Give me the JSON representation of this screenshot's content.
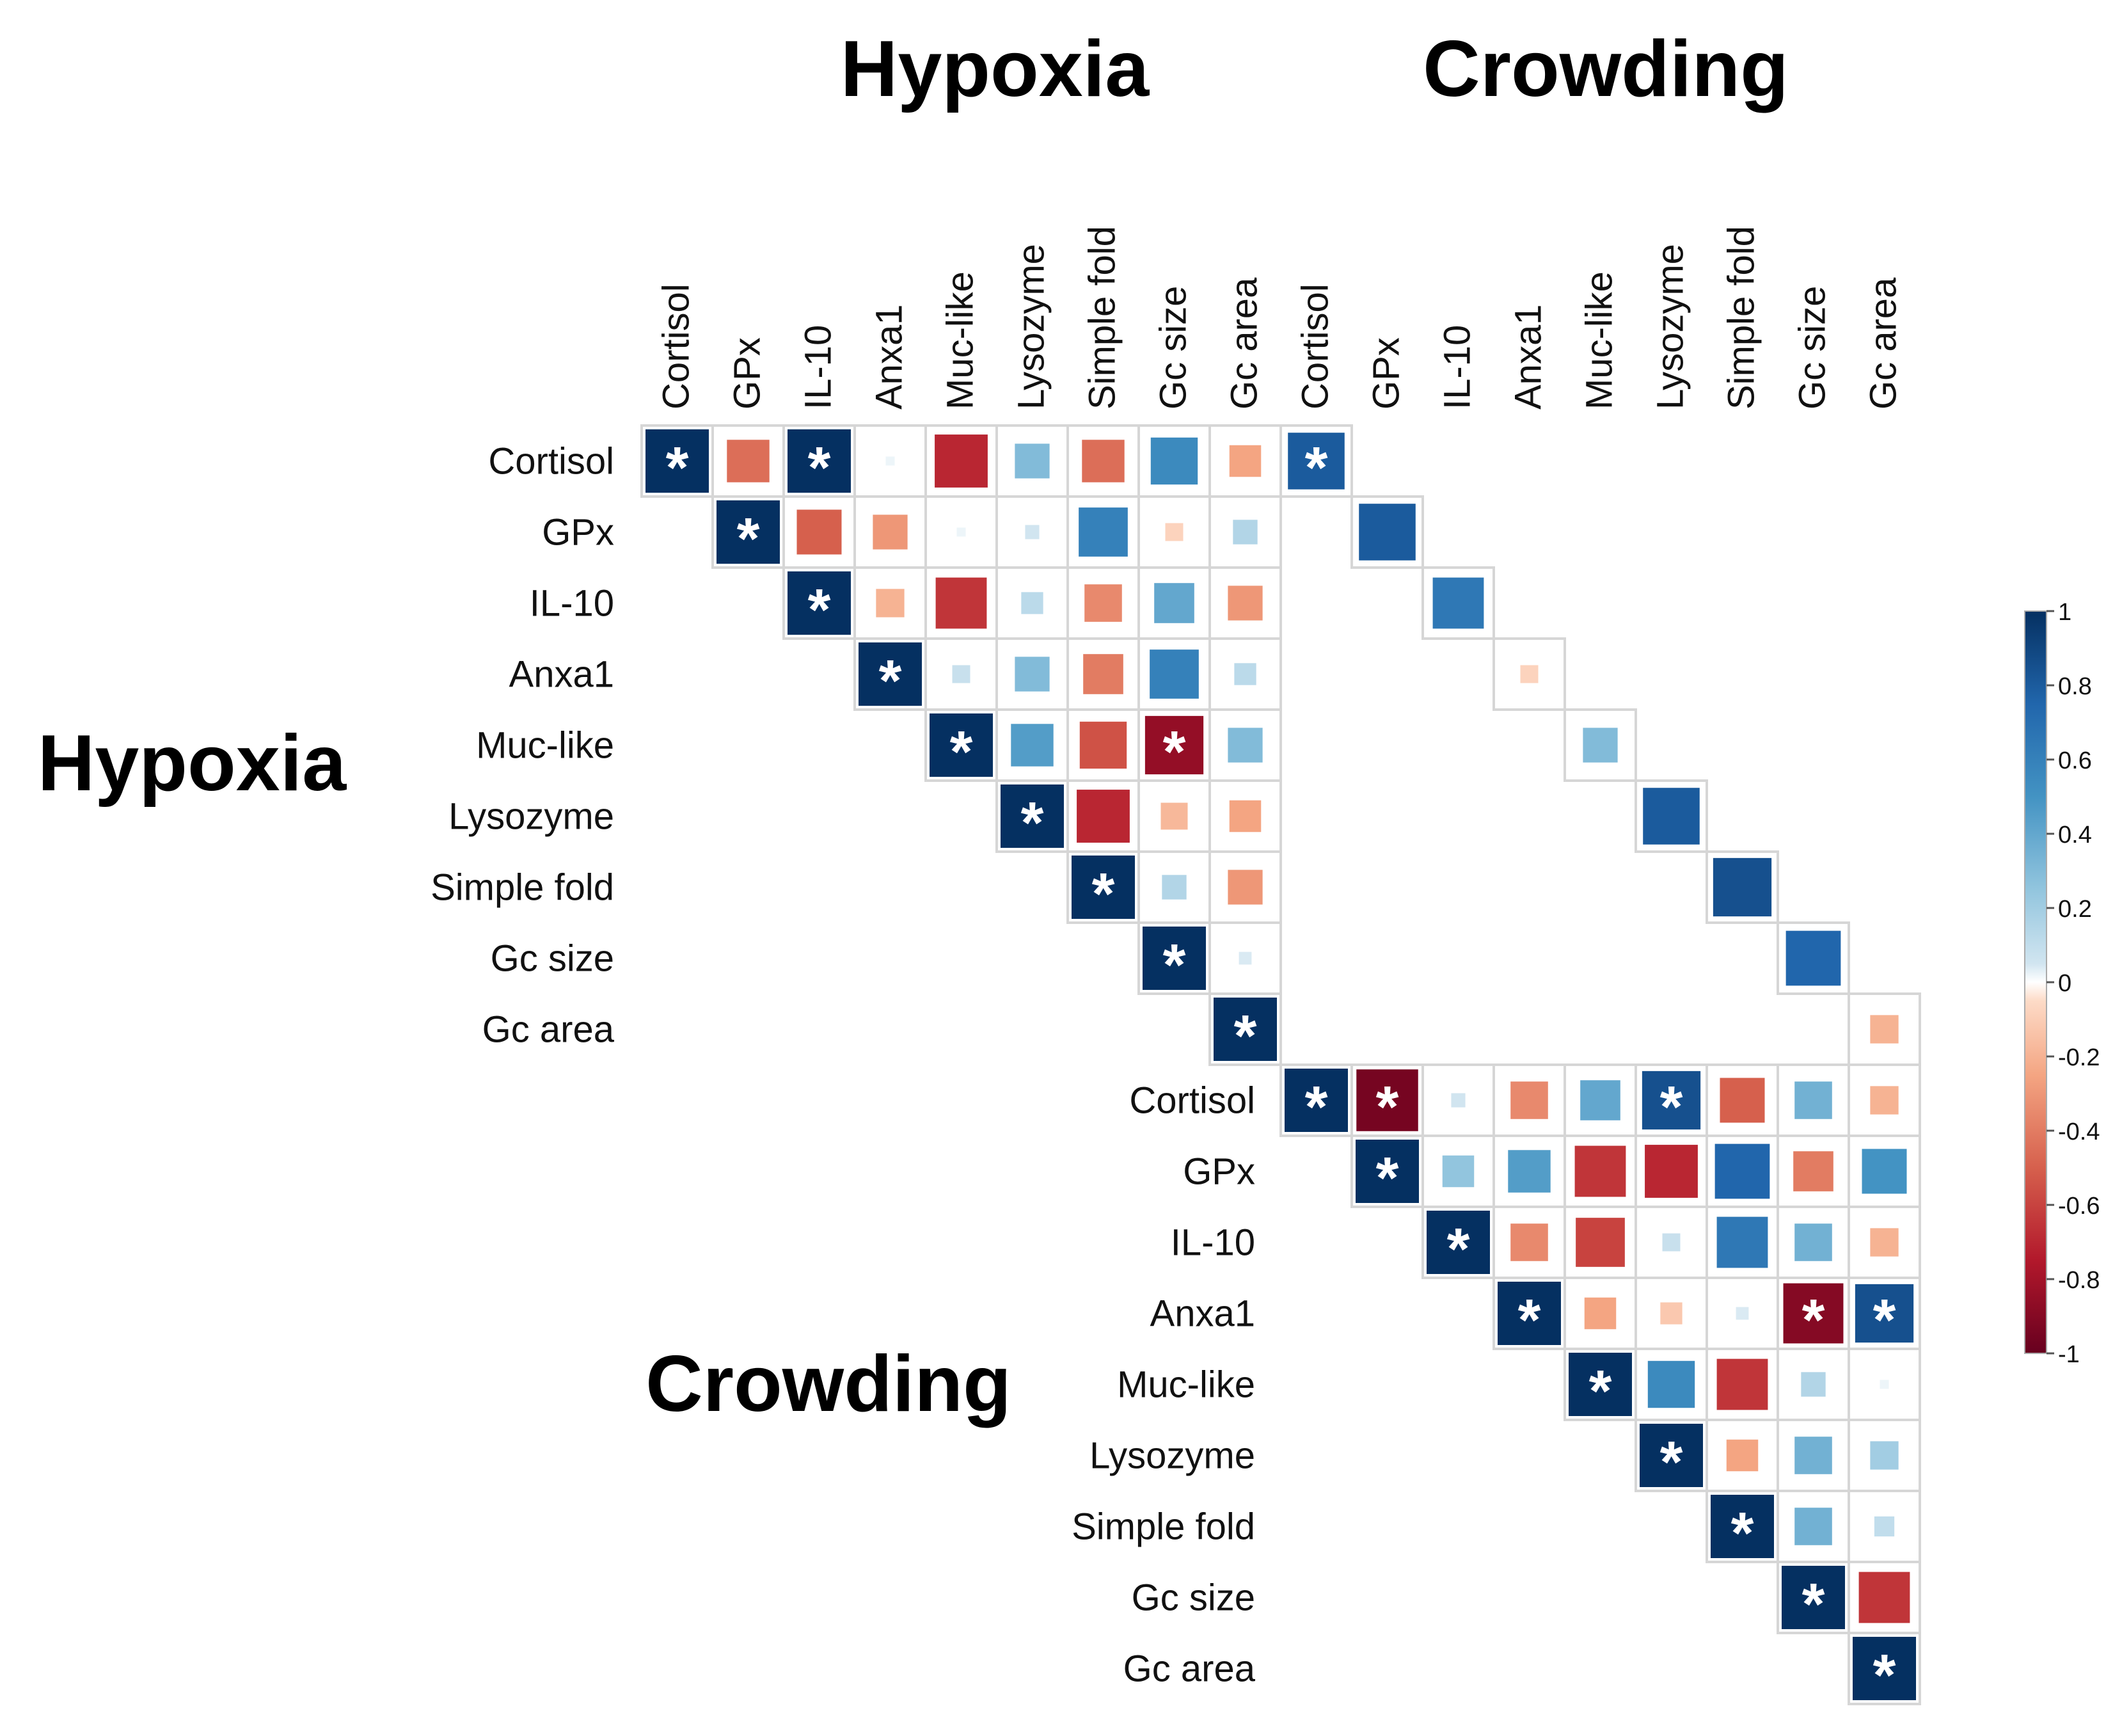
{
  "chart_data": {
    "type": "heatmap",
    "title": "",
    "group_titles": {
      "top": [
        "Hypoxia",
        "Crowding"
      ],
      "left": [
        "Hypoxia",
        "Crowding"
      ]
    },
    "variables": [
      "Cortisol",
      "GPx",
      "IL-10",
      "Anxa1",
      "Muc-like",
      "Lysozyme",
      "Simple fold",
      "Gc size",
      "Gc area"
    ],
    "significance_marker": "*",
    "colorbar": {
      "range": [
        -1,
        1
      ],
      "ticks": [
        1,
        0.8,
        0.6,
        0.4,
        0.2,
        0,
        -0.2,
        -0.4,
        -0.6,
        -0.8,
        -1
      ],
      "tick_labels": [
        "1",
        "0.8",
        "0.6",
        "0.4",
        "0.2",
        "0",
        "-0.2",
        "-0.4",
        "-0.6",
        "-0.8",
        "-1"
      ],
      "stops": [
        {
          "v": -1,
          "color": "#67001F"
        },
        {
          "v": -0.75,
          "color": "#B2182B"
        },
        {
          "v": -0.5,
          "color": "#D6604D"
        },
        {
          "v": -0.25,
          "color": "#F4A582"
        },
        {
          "v": -0.05,
          "color": "#FDDBC7"
        },
        {
          "v": 0,
          "color": "#FFFFFF"
        },
        {
          "v": 0.05,
          "color": "#D1E5F0"
        },
        {
          "v": 0.25,
          "color": "#92C5DE"
        },
        {
          "v": 0.5,
          "color": "#4393C3"
        },
        {
          "v": 0.75,
          "color": "#2166AC"
        },
        {
          "v": 1,
          "color": "#053061"
        }
      ]
    },
    "hypoxia_matrix": [
      [
        1,
        -0.45,
        1,
        0.02,
        -0.7,
        0.3,
        -0.45,
        0.55,
        -0.25
      ],
      [
        null,
        1,
        -0.5,
        -0.3,
        0.02,
        0.05,
        0.6,
        -0.08,
        0.15
      ],
      [
        null,
        null,
        1,
        -0.2,
        -0.65,
        0.12,
        -0.35,
        0.4,
        -0.3
      ],
      [
        null,
        null,
        null,
        1,
        0.08,
        0.3,
        -0.4,
        0.6,
        0.12
      ],
      [
        null,
        null,
        null,
        null,
        1,
        0.45,
        -0.55,
        -0.85,
        0.3
      ],
      [
        null,
        null,
        null,
        null,
        null,
        1,
        -0.7,
        -0.18,
        -0.25
      ],
      [
        null,
        null,
        null,
        null,
        null,
        null,
        1,
        0.15,
        -0.3
      ],
      [
        null,
        null,
        null,
        null,
        null,
        null,
        null,
        1,
        0.04
      ],
      [
        null,
        null,
        null,
        null,
        null,
        null,
        null,
        null,
        1
      ]
    ],
    "hypoxia_significant": [
      [
        0,
        0
      ],
      [
        0,
        2
      ],
      [
        1,
        1
      ],
      [
        2,
        2
      ],
      [
        3,
        3
      ],
      [
        4,
        4
      ],
      [
        4,
        7
      ],
      [
        5,
        5
      ],
      [
        6,
        6
      ],
      [
        7,
        7
      ],
      [
        8,
        8
      ]
    ],
    "cross_diagonal": {
      "labels": [
        "Cortisol",
        "GPx",
        "IL-10",
        "Anxa1",
        "Muc-like",
        "Lysozyme",
        "Simple fold",
        "Gc size",
        "Gc area"
      ],
      "values": [
        0.8,
        0.8,
        0.65,
        -0.08,
        0.3,
        0.8,
        0.85,
        0.75,
        -0.2
      ],
      "significant": [
        true,
        false,
        false,
        false,
        false,
        false,
        false,
        false,
        false
      ]
    },
    "crowding_matrix": [
      [
        1,
        -0.95,
        0.05,
        -0.35,
        0.4,
        0.85,
        -0.5,
        0.35,
        -0.2
      ],
      [
        null,
        1,
        0.25,
        0.45,
        -0.65,
        -0.7,
        0.75,
        -0.4,
        0.5
      ],
      [
        null,
        null,
        1,
        -0.35,
        -0.6,
        0.08,
        0.65,
        0.35,
        -0.2
      ],
      [
        null,
        null,
        null,
        1,
        -0.25,
        -0.12,
        0.04,
        -0.9,
        0.85
      ],
      [
        null,
        null,
        null,
        null,
        1,
        0.55,
        -0.65,
        0.15,
        0.02
      ],
      [
        null,
        null,
        null,
        null,
        null,
        1,
        -0.25,
        0.35,
        0.2
      ],
      [
        null,
        null,
        null,
        null,
        null,
        null,
        1,
        0.35,
        0.1
      ],
      [
        null,
        null,
        null,
        null,
        null,
        null,
        null,
        1,
        -0.65
      ],
      [
        null,
        null,
        null,
        null,
        null,
        null,
        null,
        null,
        1
      ]
    ],
    "crowding_significant": [
      [
        0,
        0
      ],
      [
        0,
        1
      ],
      [
        0,
        5
      ],
      [
        1,
        1
      ],
      [
        2,
        2
      ],
      [
        3,
        3
      ],
      [
        3,
        7
      ],
      [
        3,
        8
      ],
      [
        4,
        4
      ],
      [
        5,
        5
      ],
      [
        6,
        6
      ],
      [
        7,
        7
      ],
      [
        8,
        8
      ]
    ]
  }
}
